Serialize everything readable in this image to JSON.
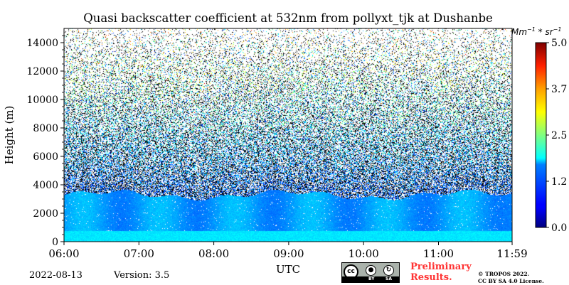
{
  "title": "Quasi backscatter coefficient at 532nm from pollyxt_tjk at Dushanbe",
  "date": "2022-08-13",
  "version": "Version: 3.5",
  "preliminary_line1": "Preliminary",
  "preliminary_line2": "Results.",
  "copyright_line1": "© TROPOS 2022.",
  "copyright_line2": "CC BY SA 4.0 License.",
  "license_badge": {
    "cc": "cc",
    "by": "BY",
    "sa": "SA"
  },
  "colorbar": {
    "unit_base": "Mm",
    "unit_exp1": "−1",
    "unit_mid": " * sr",
    "unit_exp2": "−1",
    "range": [
      0,
      5.0
    ],
    "tick_labels": [
      "0.0",
      "1.2",
      "2.5",
      "3.7",
      "5.0"
    ],
    "tick_values": [
      0,
      1.25,
      2.5,
      3.75,
      5.0
    ],
    "colormap": "jet"
  },
  "chart_data": {
    "type": "heatmap",
    "title": "Quasi backscatter coefficient at 532nm from pollyxt_tjk at Dushanbe",
    "xlabel": "UTC",
    "ylabel": "Height (m)",
    "x_tick_labels": [
      "06:00",
      "07:00",
      "08:00",
      "09:00",
      "10:00",
      "11:00",
      "11:59"
    ],
    "x_range_hours": [
      6.0,
      11.983
    ],
    "y_tick_labels": [
      "0",
      "2000",
      "4000",
      "6000",
      "8000",
      "10000",
      "12000",
      "14000"
    ],
    "y_tick_values": [
      0,
      2000,
      4000,
      6000,
      8000,
      10000,
      12000,
      14000
    ],
    "ylim": [
      0,
      15000
    ],
    "value_range": [
      0,
      5.0
    ],
    "unit": "Mm-1 * sr-1",
    "structure": {
      "aerosol_layer_top_m": 3300,
      "aerosol_layer_value": 1.0,
      "near_surface_layer_top_m": 800,
      "near_surface_value": 1.4,
      "free_troposphere_value": 0.3,
      "noise_level_at_top": 2.5
    }
  }
}
